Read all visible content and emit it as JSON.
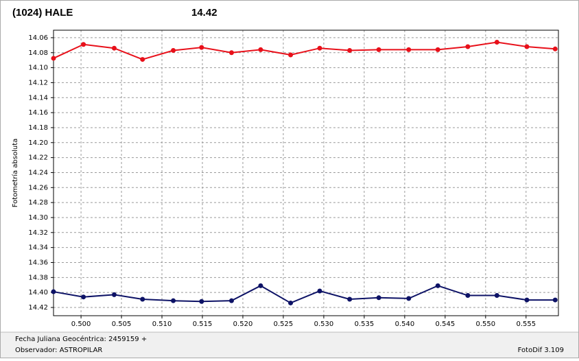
{
  "chart_data": {
    "type": "line",
    "title": "(1024) HALE",
    "subtitle": "14.42",
    "title_color": "#e01010",
    "subtitle_color": "#1a237e",
    "ylabel": "Fotometría absoluta",
    "footer_lines": [
      "Fecha Juliana Geocéntrica: 2459159 +",
      "Observador: ASTROPILAR"
    ],
    "software": "FotoDif 3.109",
    "x": [
      0.4966,
      0.5003,
      0.5041,
      0.5076,
      0.5114,
      0.5149,
      0.5186,
      0.5222,
      0.5259,
      0.5295,
      0.5332,
      0.5368,
      0.5405,
      0.5441,
      0.5478,
      0.5514,
      0.5551,
      0.5586
    ],
    "series": [
      {
        "color": "#e8101a",
        "values": [
          14.0875,
          14.069,
          14.074,
          14.089,
          14.077,
          14.073,
          14.08,
          14.076,
          14.083,
          14.074,
          14.077,
          14.076,
          14.076,
          14.076,
          14.072,
          14.066,
          14.072,
          14.075
        ]
      },
      {
        "color": "#0d1266",
        "values": [
          14.399,
          14.406,
          14.403,
          14.409,
          14.411,
          14.412,
          14.411,
          14.391,
          14.414,
          14.398,
          14.409,
          14.407,
          14.408,
          14.391,
          14.404,
          14.404,
          14.41,
          14.41
        ]
      }
    ],
    "xlim": [
      0.4966,
      0.559
    ],
    "ylim": [
      14.05,
      14.431
    ],
    "y_inverted": true,
    "grid": true,
    "xticks": [
      {
        "value": 0.5,
        "label": "0.500"
      },
      0.505,
      {
        "value": 0.51,
        "label": "0.510"
      },
      0.515,
      {
        "value": 0.52,
        "label": "0.520"
      },
      0.525,
      {
        "value": 0.53,
        "label": "0.530"
      },
      0.535,
      {
        "value": 0.54,
        "label": "0.540"
      },
      0.545,
      {
        "value": 0.55,
        "label": "0.550"
      },
      0.555
    ],
    "yticks": [
      14.06,
      14.08,
      {
        "value": 14.1,
        "label": "14.10"
      },
      14.12,
      14.14,
      14.16,
      14.18,
      {
        "value": 14.2,
        "label": "14.20"
      },
      14.22,
      14.24,
      14.26,
      14.28,
      {
        "value": 14.3,
        "label": "14.30"
      },
      14.32,
      14.34,
      14.36,
      14.38,
      {
        "value": 14.4,
        "label": "14.40"
      },
      14.42
    ]
  }
}
